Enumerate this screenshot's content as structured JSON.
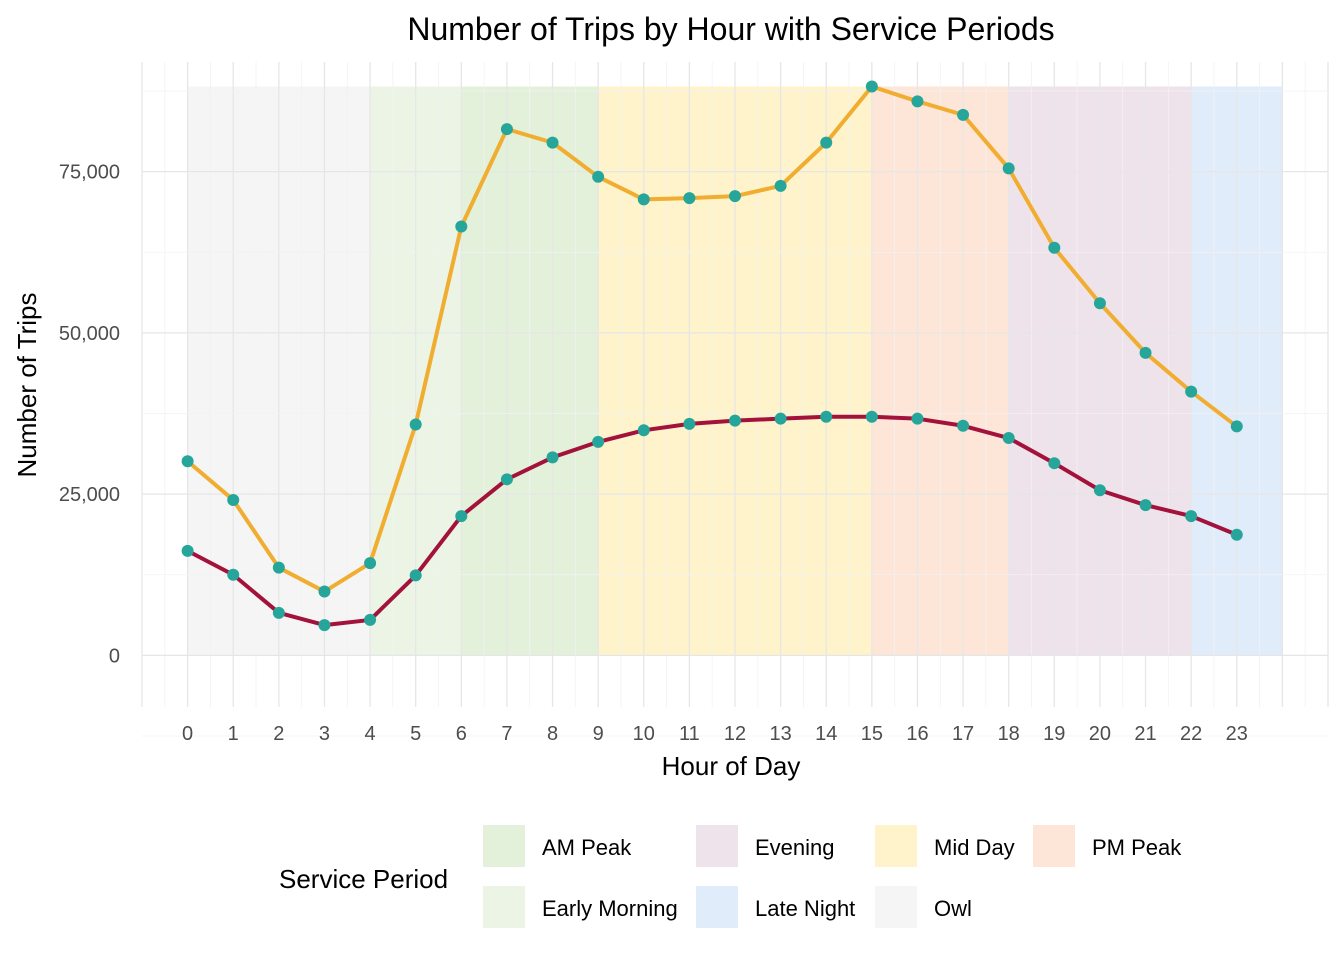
{
  "chart_data": {
    "type": "line",
    "title": "Number of Trips by Hour with Service Periods",
    "xlabel": "Hour of Day",
    "ylabel": "Number of Trips",
    "x": [
      0,
      1,
      2,
      3,
      4,
      5,
      6,
      7,
      8,
      9,
      10,
      11,
      12,
      13,
      14,
      15,
      16,
      17,
      18,
      19,
      20,
      21,
      22,
      23
    ],
    "x_tick_labels": [
      "0",
      "1",
      "2",
      "3",
      "4",
      "5",
      "6",
      "7",
      "8",
      "9",
      "10",
      "11",
      "12",
      "13",
      "14",
      "15",
      "16",
      "17",
      "18",
      "19",
      "20",
      "21",
      "22",
      "23"
    ],
    "xlim": [
      -1,
      25
    ],
    "ylim": [
      -8000,
      92000
    ],
    "y_ticks": [
      0,
      25000,
      50000,
      75000
    ],
    "y_tick_labels": [
      "0",
      "25,000",
      "50,000",
      "75,000"
    ],
    "grid": true,
    "series": [
      {
        "color": "#F0AD2F",
        "values": [
          30100,
          24100,
          13600,
          9900,
          14300,
          35800,
          66500,
          81600,
          79500,
          74200,
          70700,
          70900,
          71200,
          72800,
          79500,
          88200,
          85900,
          83800,
          75500,
          63200,
          54600,
          46900,
          40900,
          35500
        ]
      },
      {
        "color": "#A3123A",
        "values": [
          16200,
          12500,
          6600,
          4700,
          5500,
          12400,
          21600,
          27300,
          30700,
          33100,
          34900,
          35900,
          36400,
          36700,
          37000,
          37000,
          36700,
          35600,
          33700,
          29800,
          25600,
          23300,
          21600,
          18700
        ]
      }
    ],
    "point_color": "#26A69A",
    "service_periods": [
      {
        "name": "Owl",
        "start": 0,
        "end": 4,
        "color": "#F5F5F5"
      },
      {
        "name": "Early Morning",
        "start": 4,
        "end": 6,
        "color": "#EBF4E5"
      },
      {
        "name": "AM Peak",
        "start": 6,
        "end": 9,
        "color": "#E3F0DA"
      },
      {
        "name": "Mid Day",
        "start": 9,
        "end": 15,
        "color": "#FFF3CC"
      },
      {
        "name": "PM Peak",
        "start": 15,
        "end": 18,
        "color": "#FDE5D8"
      },
      {
        "name": "Evening",
        "start": 18,
        "end": 22,
        "color": "#EEE3EA"
      },
      {
        "name": "Late Night",
        "start": 22,
        "end": 24,
        "color": "#E1ECFB"
      }
    ],
    "band_ymax": 88200,
    "legend": {
      "title": "Service Period",
      "placement": "bottom",
      "entries": [
        {
          "label": "AM Peak",
          "color": "#E3F0DA"
        },
        {
          "label": "Evening",
          "color": "#EEE3EA"
        },
        {
          "label": "Mid Day",
          "color": "#FFF3CC"
        },
        {
          "label": "PM Peak",
          "color": "#FDE5D8"
        },
        {
          "label": "Early Morning",
          "color": "#EBF4E5"
        },
        {
          "label": "Late Night",
          "color": "#E1ECFB"
        },
        {
          "label": "Owl",
          "color": "#F5F5F5"
        }
      ]
    }
  }
}
